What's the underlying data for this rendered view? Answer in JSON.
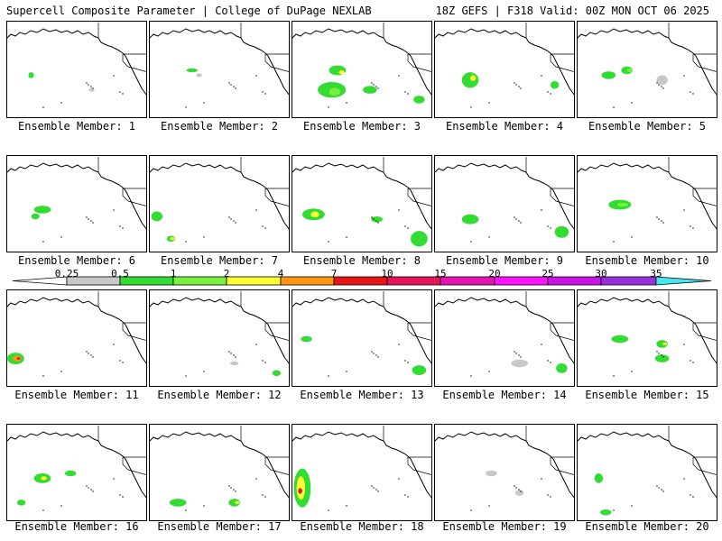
{
  "header": {
    "title": "Supercell Composite Parameter | College of DuPage NEXLAB",
    "run_info": "18Z GEFS | F318 Valid: 00Z MON OCT 06 2025"
  },
  "members": [
    {
      "label": "Ensemble Member: 1"
    },
    {
      "label": "Ensemble Member: 2"
    },
    {
      "label": "Ensemble Member: 3"
    },
    {
      "label": "Ensemble Member: 4"
    },
    {
      "label": "Ensemble Member: 5"
    },
    {
      "label": "Ensemble Member: 6"
    },
    {
      "label": "Ensemble Member: 7"
    },
    {
      "label": "Ensemble Member: 8"
    },
    {
      "label": "Ensemble Member: 9"
    },
    {
      "label": "Ensemble Member: 10"
    },
    {
      "label": "Ensemble Member: 11"
    },
    {
      "label": "Ensemble Member: 12"
    },
    {
      "label": "Ensemble Member: 13"
    },
    {
      "label": "Ensemble Member: 14"
    },
    {
      "label": "Ensemble Member: 15"
    },
    {
      "label": "Ensemble Member: 16"
    },
    {
      "label": "Ensemble Member: 17"
    },
    {
      "label": "Ensemble Member: 18"
    },
    {
      "label": "Ensemble Member: 19"
    },
    {
      "label": "Ensemble Member: 20"
    }
  ],
  "colorbar": {
    "ticks": [
      "0.25",
      "0.5",
      "1",
      "2",
      "4",
      "7",
      "10",
      "15",
      "20",
      "25",
      "30",
      "35"
    ],
    "colors": [
      "#c8c8c8",
      "#32dc32",
      "#78f03c",
      "#ffff32",
      "#ff9614",
      "#e61414",
      "#e6145a",
      "#e614b4",
      "#ff14ff",
      "#c814e6",
      "#9632dc",
      "#46e6f0"
    ]
  },
  "palette": {
    "gray": "#c8c8c8",
    "green": "#32dc32",
    "light_green": "#78f03c",
    "yellow": "#ffff32",
    "orange": "#ff9614",
    "red": "#e61414"
  }
}
